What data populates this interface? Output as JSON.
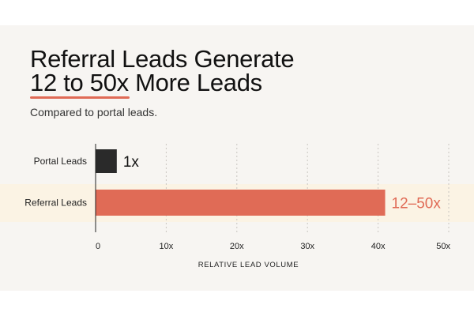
{
  "header": {
    "title_line1": "Referral Leads Generate",
    "title_line2": "12 to 50x More Leads",
    "subtitle": "Compared to portal leads."
  },
  "colors": {
    "background": "#f7f5f2",
    "highlight_band": "#fbf3e4",
    "accent": "#e06b56",
    "portal_bar": "#2a2a2a",
    "grid": "#c9c5c0",
    "axis": "#222222"
  },
  "chart_data": {
    "type": "bar",
    "orientation": "horizontal",
    "categories": [
      "Portal Leads",
      "Referral Leads"
    ],
    "values": [
      3,
      41
    ],
    "data_labels": [
      "1x",
      "12–50x"
    ],
    "xlabel": "RELATIVE LEAD VOLUME",
    "ylabel": "",
    "xlim": [
      0,
      50
    ],
    "xticks": [
      0,
      10,
      20,
      30,
      40,
      50
    ],
    "xtick_labels": [
      "0",
      "10x",
      "20x",
      "30x",
      "40x",
      "50x"
    ],
    "grid": "vertical dotted",
    "legend": "none"
  }
}
